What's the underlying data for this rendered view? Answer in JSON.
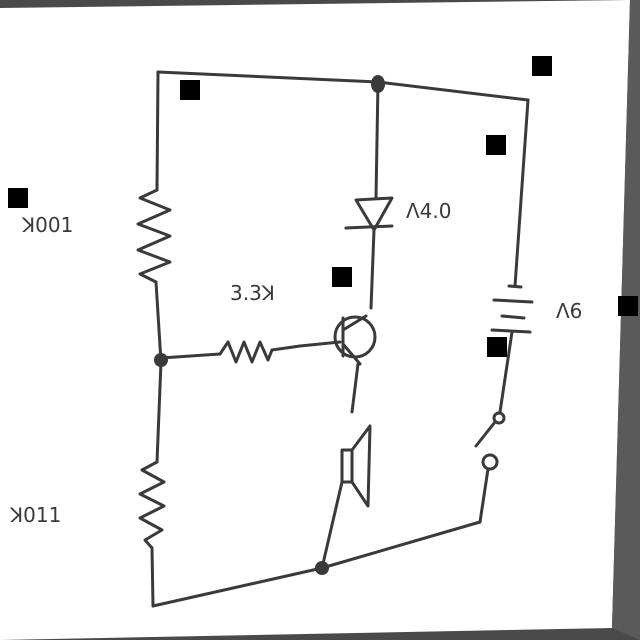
{
  "diagram": {
    "labels": {
      "r_top": "ꓘ001",
      "r_bottom": "ꓘ011",
      "r_base": "3.3ꓘ",
      "diode": "Λ4.0",
      "battery": "Λ6"
    },
    "colors": {
      "paper": "#ffffff",
      "ink": "#3a3a3a",
      "background": "#4a4a4a",
      "marker": "#000000"
    }
  }
}
